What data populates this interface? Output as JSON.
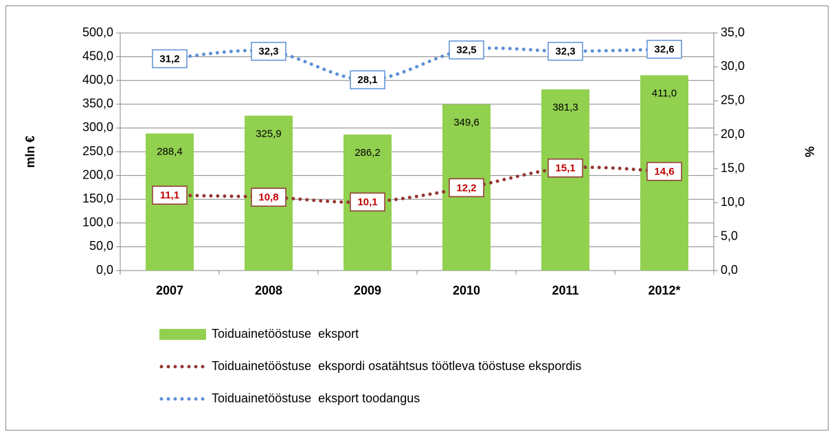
{
  "chart_data": {
    "type": "bar",
    "categories": [
      "2007",
      "2008",
      "2009",
      "2010",
      "2011",
      "2012*"
    ],
    "y_axis_label": "mln €",
    "y2_axis_label": "%",
    "ylim": [
      0,
      500
    ],
    "yticks": [
      {
        "value": 0,
        "label": "0,0"
      },
      {
        "value": 50,
        "label": "50,0"
      },
      {
        "value": 100,
        "label": "100,0"
      },
      {
        "value": 150,
        "label": "150,0"
      },
      {
        "value": 200,
        "label": "200,0"
      },
      {
        "value": 250,
        "label": "250,0"
      },
      {
        "value": 300,
        "label": "300,0"
      },
      {
        "value": 350,
        "label": "350,0"
      },
      {
        "value": 400,
        "label": "400,0"
      },
      {
        "value": 450,
        "label": "450,0"
      },
      {
        "value": 500,
        "label": "500,0"
      }
    ],
    "y2lim": [
      0,
      35
    ],
    "y2ticks": [
      {
        "value": 0,
        "label": "0,0"
      },
      {
        "value": 5,
        "label": "5,0"
      },
      {
        "value": 10,
        "label": "10,0"
      },
      {
        "value": 15,
        "label": "15,0"
      },
      {
        "value": 20,
        "label": "20,0"
      },
      {
        "value": 25,
        "label": "25,0"
      },
      {
        "value": 30,
        "label": "30,0"
      },
      {
        "value": 35,
        "label": "35,0"
      }
    ],
    "grid": true,
    "legend": "bottom",
    "series": [
      {
        "name": "Toiduainetööstuse  eksport",
        "type": "bar",
        "color": "#92d050",
        "values": [
          288.4,
          325.9,
          286.2,
          349.6,
          381.3,
          411.0
        ],
        "value_labels": [
          "288,4",
          "325,9",
          "286,2",
          "349,6",
          "381,3",
          "411,0"
        ]
      },
      {
        "name": "Toiduainetööstuse  ekspordi osatähtsus töötleva tööstuse ekspordis",
        "type": "line",
        "axis": "y2",
        "color": "#943634",
        "label_color": "#c00000",
        "values": [
          11.1,
          10.8,
          10.1,
          12.2,
          15.1,
          14.6
        ],
        "value_labels": [
          "11,1",
          "10,8",
          "10,1",
          "12,2",
          "15,1",
          "14,6"
        ]
      },
      {
        "name": "Toiduainetööstuse  eksport toodangus",
        "type": "line",
        "axis": "y2",
        "color": "#5b8fd6",
        "label_color": "#000000",
        "values": [
          31.2,
          32.3,
          28.1,
          32.5,
          32.3,
          32.6
        ],
        "value_labels": [
          "31,2",
          "32,3",
          "28,1",
          "32,5",
          "32,3",
          "32,6"
        ]
      }
    ]
  }
}
